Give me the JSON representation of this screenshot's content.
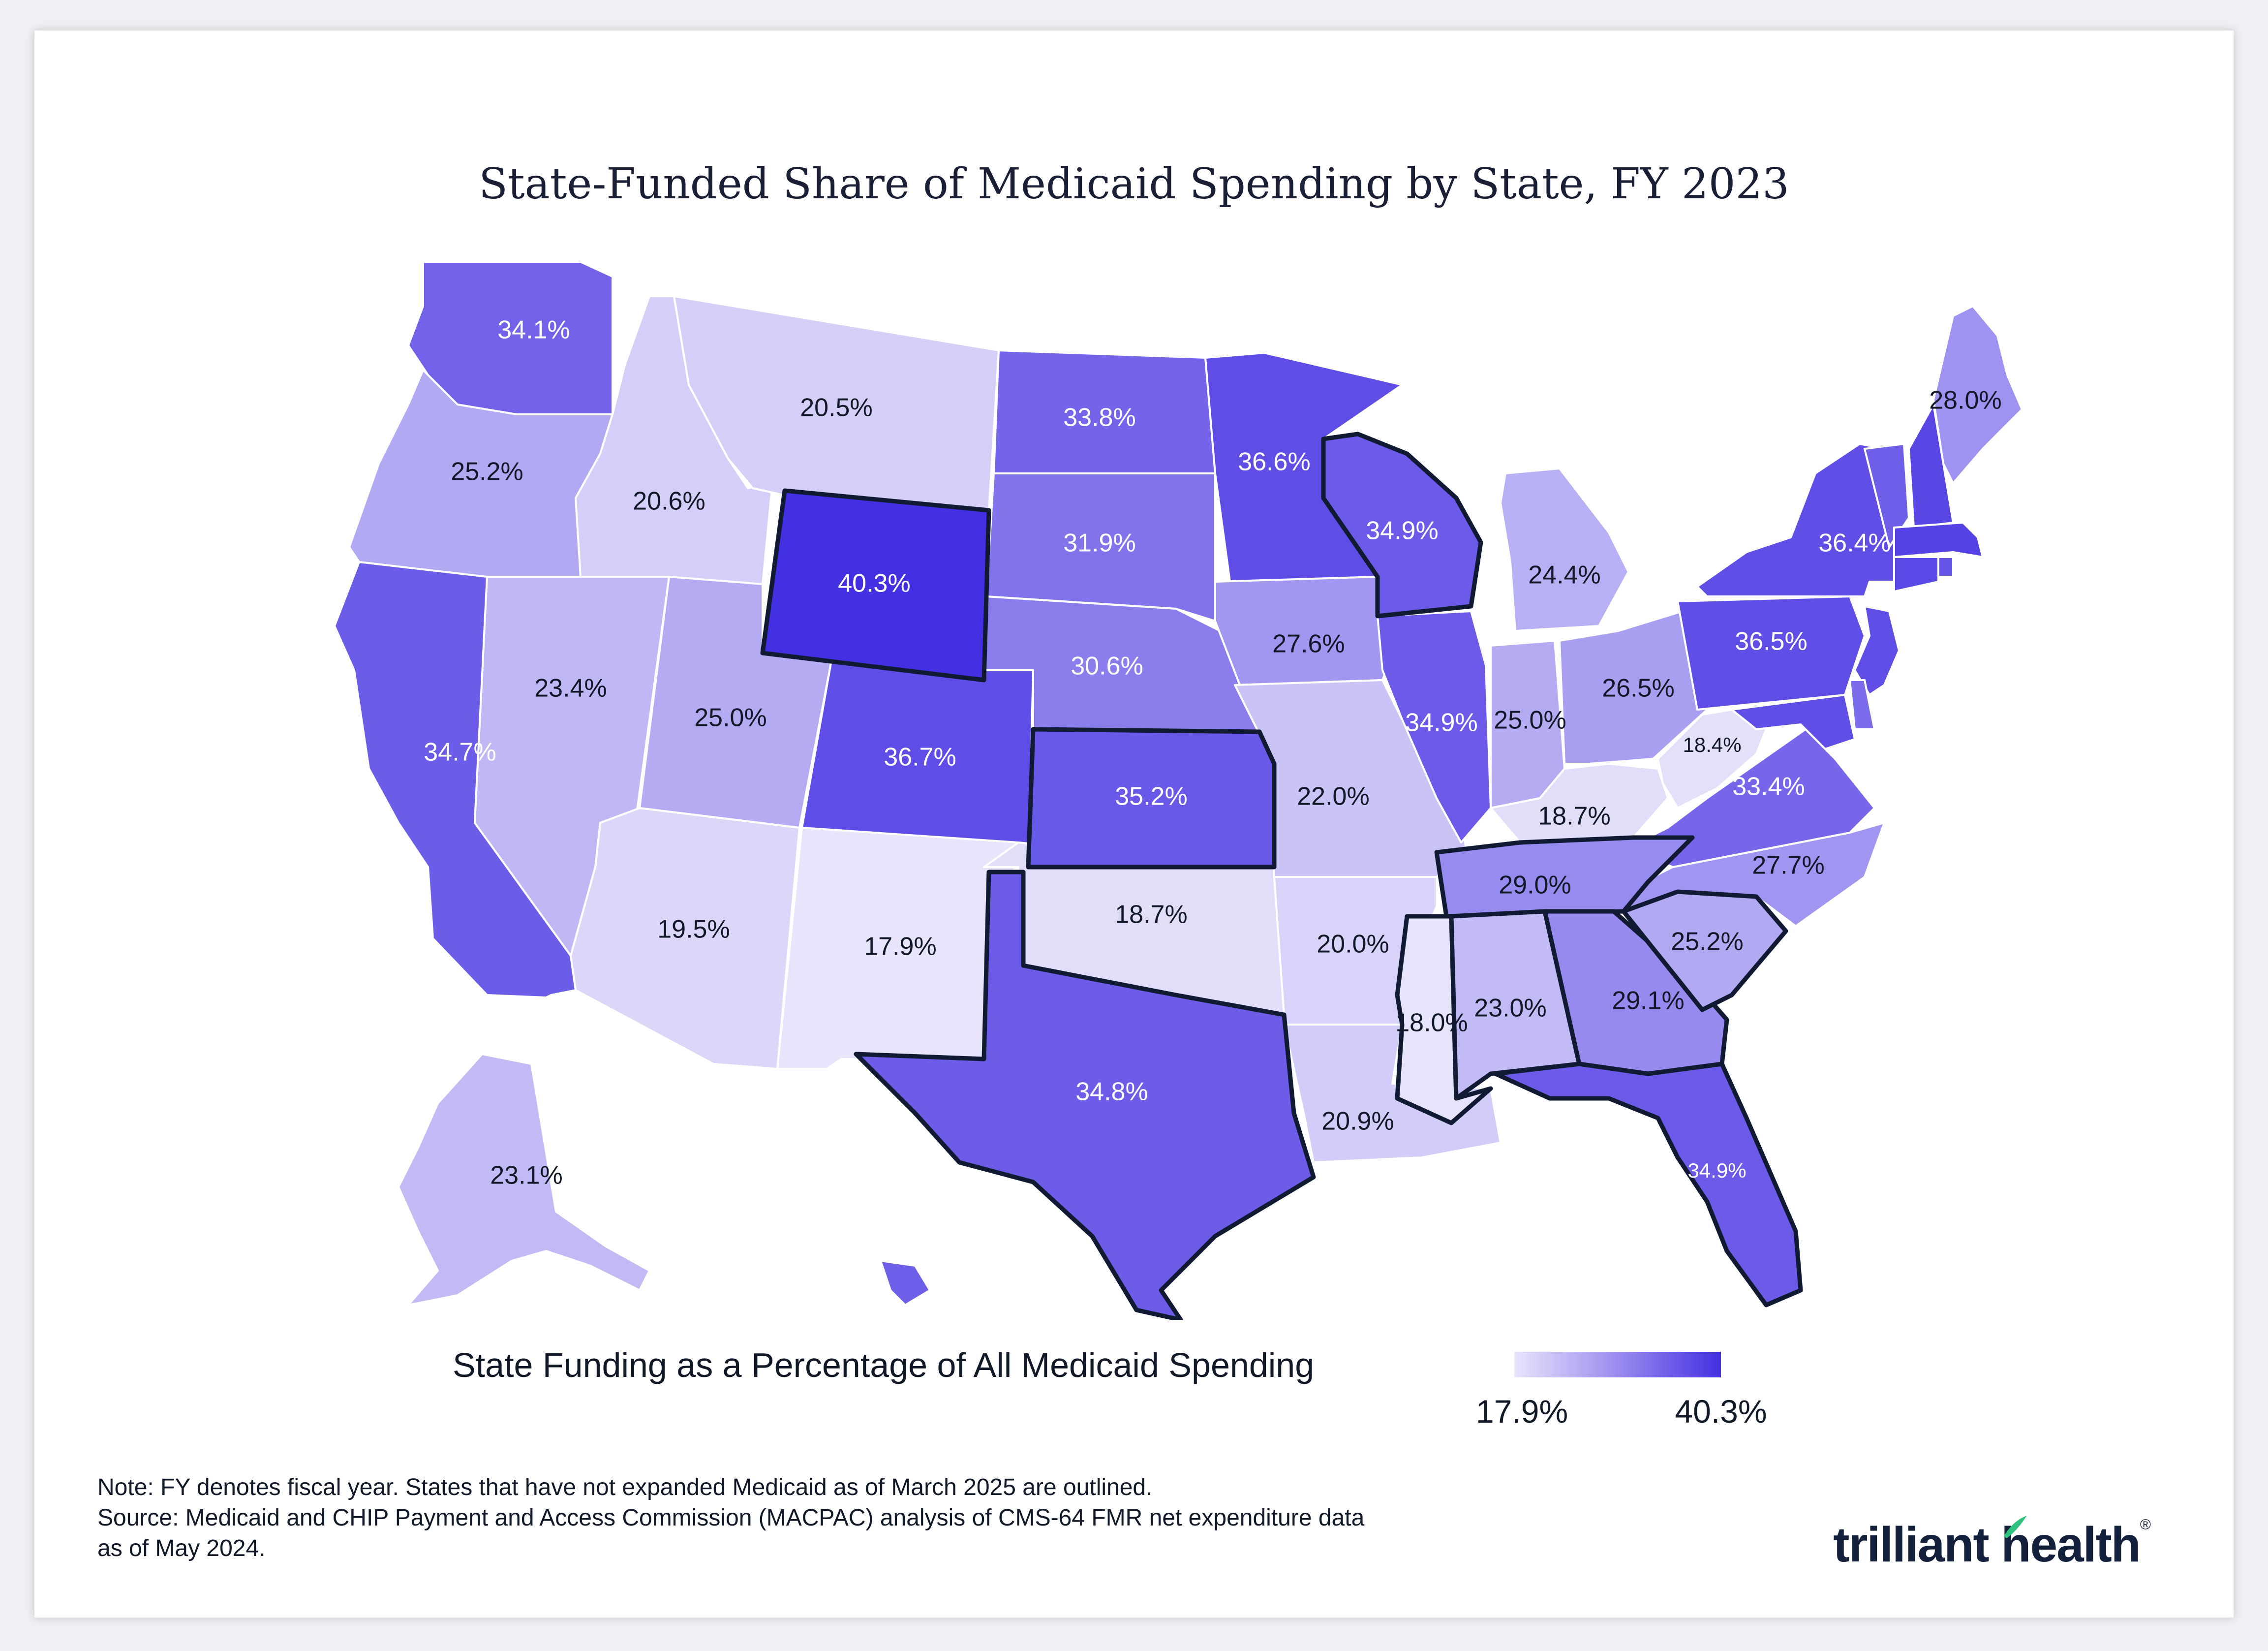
{
  "title": "State-Funded Share of Medicaid Spending by State, FY 2023",
  "legend": {
    "title": "State Funding as a Percentage of All Medicaid Spending",
    "min_label": "17.9%",
    "max_label": "40.3%",
    "min_value": 17.9,
    "max_value": 40.3,
    "color_low": "#e8e4fb",
    "color_high": "#4330e2"
  },
  "notes": {
    "note": "Note: FY denotes fiscal year. States that have not expanded Medicaid as of March 2025 are outlined.",
    "source_line1": "Source: Medicaid and CHIP Payment and Access Commission (MACPAC) analysis of CMS-64 FMR net expenditure data",
    "source_line2": "as of May 2024."
  },
  "brand": {
    "name": "trilliant health",
    "registered_mark": "®",
    "color": "#14213d",
    "accent": "#2ec27e"
  },
  "states": [
    {
      "state": "WA",
      "value": 34.1,
      "label": "34.1%"
    },
    {
      "state": "OR",
      "value": 25.2,
      "label": "25.2%"
    },
    {
      "state": "CA",
      "value": 34.7,
      "label": "34.7%"
    },
    {
      "state": "ID",
      "value": 20.6,
      "label": "20.6%"
    },
    {
      "state": "NV",
      "value": 23.4,
      "label": "23.4%"
    },
    {
      "state": "MT",
      "value": 20.5,
      "label": "20.5%"
    },
    {
      "state": "WY",
      "value": 40.3,
      "label": "40.3%",
      "outlined": true
    },
    {
      "state": "UT",
      "value": 25.0,
      "label": "25.0%"
    },
    {
      "state": "AZ",
      "value": 19.5,
      "label": "19.5%"
    },
    {
      "state": "CO",
      "value": 36.7,
      "label": "36.7%"
    },
    {
      "state": "NM",
      "value": 17.9,
      "label": "17.9%"
    },
    {
      "state": "ND",
      "value": 33.8,
      "label": "33.8%"
    },
    {
      "state": "SD",
      "value": 31.9,
      "label": "31.9%"
    },
    {
      "state": "NE",
      "value": 30.6,
      "label": "30.6%"
    },
    {
      "state": "KS",
      "value": 35.2,
      "label": "35.2%",
      "outlined": true
    },
    {
      "state": "OK",
      "value": 18.7,
      "label": "18.7%"
    },
    {
      "state": "TX",
      "value": 34.8,
      "label": "34.8%",
      "outlined": true
    },
    {
      "state": "MN",
      "value": 36.6,
      "label": "36.6%"
    },
    {
      "state": "IA",
      "value": 27.6,
      "label": "27.6%"
    },
    {
      "state": "MO",
      "value": 22.0,
      "label": "22.0%"
    },
    {
      "state": "AR",
      "value": 20.0,
      "label": "20.0%"
    },
    {
      "state": "LA",
      "value": 20.9,
      "label": "20.9%"
    },
    {
      "state": "WI",
      "value": 34.9,
      "label": "34.9%",
      "outlined": true
    },
    {
      "state": "IL",
      "value": 34.9,
      "label": "34.9%"
    },
    {
      "state": "MI",
      "value": 24.4,
      "label": "24.4%"
    },
    {
      "state": "IN",
      "value": 25.0,
      "label": "25.0%"
    },
    {
      "state": "OH",
      "value": 26.5,
      "label": "26.5%"
    },
    {
      "state": "KY",
      "value": 18.7,
      "label": "18.7%"
    },
    {
      "state": "TN",
      "value": 29.0,
      "label": "29.0%",
      "outlined": true
    },
    {
      "state": "MS",
      "value": 18.0,
      "label": "18.0%",
      "outlined": true
    },
    {
      "state": "AL",
      "value": 23.0,
      "label": "23.0%",
      "outlined": true
    },
    {
      "state": "GA",
      "value": 29.1,
      "label": "29.1%",
      "outlined": true
    },
    {
      "state": "FL",
      "value": 34.9,
      "label": "34.9%",
      "outlined": true
    },
    {
      "state": "SC",
      "value": 25.2,
      "label": "25.2%",
      "outlined": true
    },
    {
      "state": "NC",
      "value": 27.7,
      "label": "27.7%"
    },
    {
      "state": "VA",
      "value": 33.4,
      "label": "33.4%"
    },
    {
      "state": "WV",
      "value": 18.4,
      "label": "18.4%"
    },
    {
      "state": "PA",
      "value": 36.5,
      "label": "36.5%"
    },
    {
      "state": "NY",
      "value": 36.4,
      "label": "36.4%"
    },
    {
      "state": "ME",
      "value": 28.0,
      "label": "28.0%"
    },
    {
      "state": "AK",
      "value": 23.1,
      "label": "23.1%"
    },
    {
      "state": "HI",
      "value": 34.5,
      "label": ""
    },
    {
      "state": "VT",
      "value": 34.5,
      "label": ""
    },
    {
      "state": "NH",
      "value": 37.5,
      "label": ""
    },
    {
      "state": "MA",
      "value": 38.0,
      "label": ""
    },
    {
      "state": "RI",
      "value": 36.0,
      "label": ""
    },
    {
      "state": "CT",
      "value": 37.0,
      "label": ""
    },
    {
      "state": "NJ",
      "value": 36.5,
      "label": ""
    },
    {
      "state": "DE",
      "value": 33.0,
      "label": ""
    },
    {
      "state": "MD",
      "value": 36.5,
      "label": ""
    }
  ]
}
